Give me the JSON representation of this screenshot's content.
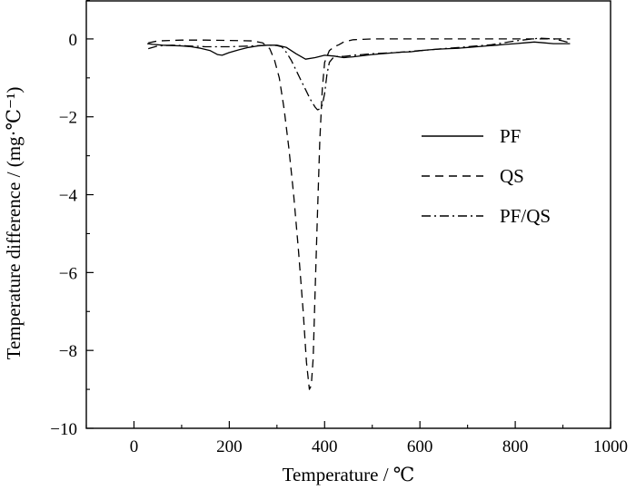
{
  "chart_data": {
    "type": "line",
    "title": "",
    "xlabel": "Temperature / ℃",
    "ylabel": "Temperature difference / (mg·℃⁻¹)",
    "xlim": [
      -100,
      1000
    ],
    "ylim": [
      -10,
      1
    ],
    "xticks": [
      0,
      200,
      400,
      600,
      800,
      1000
    ],
    "yticks": [
      0,
      -2,
      -4,
      -6,
      -8,
      -10
    ],
    "grid": false,
    "legend_position": "right-center",
    "series": [
      {
        "name": "PF",
        "dash": "solid",
        "x": [
          28,
          40,
          60,
          80,
          100,
          120,
          140,
          160,
          175,
          185,
          200,
          220,
          240,
          260,
          280,
          300,
          320,
          340,
          360,
          380,
          400,
          420,
          440,
          460,
          480,
          500,
          520,
          540,
          560,
          580,
          600,
          620,
          640,
          660,
          680,
          700,
          720,
          740,
          760,
          780,
          800,
          820,
          840,
          860,
          880,
          900,
          915
        ],
        "y": [
          -0.12,
          -0.14,
          -0.16,
          -0.17,
          -0.18,
          -0.2,
          -0.24,
          -0.3,
          -0.4,
          -0.42,
          -0.35,
          -0.28,
          -0.22,
          -0.18,
          -0.16,
          -0.16,
          -0.22,
          -0.38,
          -0.52,
          -0.48,
          -0.42,
          -0.44,
          -0.48,
          -0.46,
          -0.43,
          -0.4,
          -0.38,
          -0.36,
          -0.34,
          -0.33,
          -0.3,
          -0.28,
          -0.26,
          -0.25,
          -0.24,
          -0.22,
          -0.2,
          -0.18,
          -0.16,
          -0.14,
          -0.12,
          -0.1,
          -0.08,
          -0.1,
          -0.12,
          -0.12,
          -0.12
        ]
      },
      {
        "name": "QS",
        "dash": "dashed",
        "x": [
          30,
          50,
          100,
          150,
          200,
          250,
          270,
          285,
          295,
          305,
          315,
          325,
          335,
          345,
          355,
          362,
          368,
          372,
          376,
          380,
          385,
          390,
          395,
          400,
          410,
          420,
          430,
          440,
          460,
          500,
          600,
          700,
          800,
          900,
          915
        ],
        "y": [
          -0.1,
          -0.05,
          -0.03,
          -0.03,
          -0.04,
          -0.05,
          -0.1,
          -0.25,
          -0.55,
          -1.0,
          -1.8,
          -2.8,
          -4.0,
          -5.4,
          -7.0,
          -8.3,
          -9.0,
          -8.9,
          -8.2,
          -6.5,
          -4.5,
          -2.6,
          -1.3,
          -0.6,
          -0.3,
          -0.2,
          -0.15,
          -0.08,
          -0.02,
          0.0,
          0.0,
          0.0,
          0.0,
          0.0,
          0.0
        ]
      },
      {
        "name": "PF/QS",
        "dash": "dash-dot",
        "x": [
          30,
          50,
          80,
          100,
          150,
          200,
          250,
          280,
          300,
          310,
          320,
          330,
          340,
          350,
          360,
          370,
          380,
          385,
          390,
          395,
          400,
          405,
          410,
          420,
          430,
          440,
          460,
          480,
          500,
          550,
          600,
          650,
          700,
          750,
          800,
          850,
          880,
          900,
          915
        ],
        "y": [
          -0.25,
          -0.18,
          -0.16,
          -0.17,
          -0.2,
          -0.2,
          -0.18,
          -0.16,
          -0.17,
          -0.2,
          -0.35,
          -0.55,
          -0.8,
          -1.05,
          -1.3,
          -1.55,
          -1.75,
          -1.82,
          -1.8,
          -1.7,
          -1.4,
          -0.9,
          -0.6,
          -0.45,
          -0.45,
          -0.45,
          -0.42,
          -0.4,
          -0.38,
          -0.35,
          -0.3,
          -0.25,
          -0.2,
          -0.15,
          -0.05,
          0.02,
          0.0,
          -0.05,
          -0.1
        ]
      }
    ]
  }
}
